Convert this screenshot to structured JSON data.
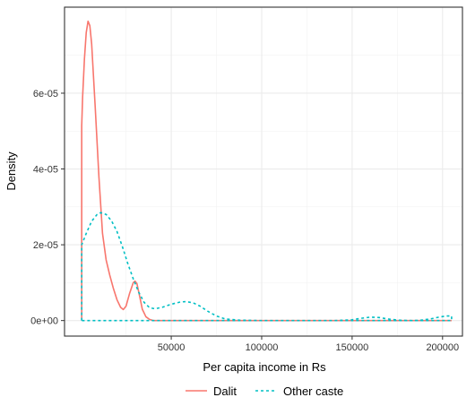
{
  "chart_data": {
    "type": "line",
    "title": "",
    "xlabel": "Per capita income in Rs",
    "ylabel": "Density",
    "xlim": [
      -9000,
      211000
    ],
    "ylim": [
      -4.1e-06,
      8.27e-05
    ],
    "x_ticks": [
      50000,
      100000,
      150000,
      200000
    ],
    "x_tick_labels": [
      "50000",
      "100000",
      "150000",
      "200000"
    ],
    "y_ticks": [
      0,
      2e-05,
      4e-05,
      6e-05
    ],
    "y_tick_labels": [
      "0e+00",
      "2e-05",
      "4e-05",
      "6e-05"
    ],
    "grid": true,
    "legend_position": "bottom",
    "series": [
      {
        "name": "Dalit",
        "color": "#F8766D",
        "dash": "solid",
        "points": [
          [
            500,
            0
          ],
          [
            500,
            5.14e-05
          ],
          [
            1000,
            5.9e-05
          ],
          [
            2000,
            6.9e-05
          ],
          [
            3000,
            7.6e-05
          ],
          [
            4000,
            7.9e-05
          ],
          [
            5000,
            7.78e-05
          ],
          [
            6000,
            7.3e-05
          ],
          [
            8000,
            5.6e-05
          ],
          [
            10000,
            3.8e-05
          ],
          [
            12000,
            2.3e-05
          ],
          [
            14000,
            1.6e-05
          ],
          [
            16000,
            1.2e-05
          ],
          [
            18000,
            8.5e-06
          ],
          [
            20000,
            5.5e-06
          ],
          [
            22000,
            3.5e-06
          ],
          [
            23500,
            2.9e-06
          ],
          [
            25000,
            3.8e-06
          ],
          [
            27000,
            7.2e-06
          ],
          [
            29000,
            1e-05
          ],
          [
            30000,
            1.04e-05
          ],
          [
            31000,
            9.8e-06
          ],
          [
            32500,
            6.5e-06
          ],
          [
            34000,
            3e-06
          ],
          [
            36000,
            1e-06
          ],
          [
            38000,
            3e-07
          ],
          [
            40000,
            0
          ],
          [
            45000,
            0
          ],
          [
            100000,
            0
          ],
          [
            150000,
            0
          ],
          [
            205000,
            0
          ]
        ]
      },
      {
        "name": "Other caste",
        "color": "#00BFC4",
        "dash": "dotted",
        "points": [
          [
            500,
            0
          ],
          [
            500,
            2e-05
          ],
          [
            3000,
            2.3e-05
          ],
          [
            6000,
            2.62e-05
          ],
          [
            9000,
            2.8e-05
          ],
          [
            11000,
            2.85e-05
          ],
          [
            14000,
            2.8e-05
          ],
          [
            17000,
            2.63e-05
          ],
          [
            20000,
            2.35e-05
          ],
          [
            23000,
            1.95e-05
          ],
          [
            26000,
            1.5e-05
          ],
          [
            29000,
            1.1e-05
          ],
          [
            32000,
            7.5e-06
          ],
          [
            35000,
            4.8e-06
          ],
          [
            38000,
            3.4e-06
          ],
          [
            41000,
            3.1e-06
          ],
          [
            45000,
            3.5e-06
          ],
          [
            50000,
            4.3e-06
          ],
          [
            55000,
            4.9e-06
          ],
          [
            58000,
            5e-06
          ],
          [
            62000,
            4.7e-06
          ],
          [
            66000,
            3.8e-06
          ],
          [
            70000,
            2.5e-06
          ],
          [
            75000,
            1.2e-06
          ],
          [
            80000,
            4e-07
          ],
          [
            88000,
            1e-07
          ],
          [
            100000,
            0
          ],
          [
            140000,
            0
          ],
          [
            150000,
            2e-07
          ],
          [
            155000,
            6e-07
          ],
          [
            160000,
            9e-07
          ],
          [
            165000,
            8e-07
          ],
          [
            170000,
            4e-07
          ],
          [
            176000,
            1e-07
          ],
          [
            183000,
            0
          ],
          [
            188000,
            1e-07
          ],
          [
            193000,
            4e-07
          ],
          [
            198000,
            9e-07
          ],
          [
            202000,
            1.2e-06
          ],
          [
            205000,
            1.2e-06
          ],
          [
            205000,
            0
          ],
          [
            500,
            0
          ]
        ]
      }
    ]
  }
}
